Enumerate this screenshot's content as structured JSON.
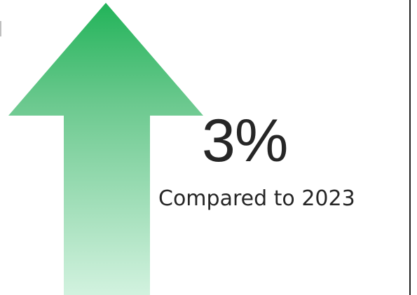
{
  "kpi": {
    "value": "3%",
    "caption": "Compared to 2023",
    "trend": "up"
  },
  "icons": {
    "trend_arrow": "arrow-up-icon"
  },
  "colors": {
    "arrow_top": "#22b359",
    "arrow_bottom": "#d2f2df",
    "text": "#262626",
    "divider": "#1f1f1f"
  }
}
